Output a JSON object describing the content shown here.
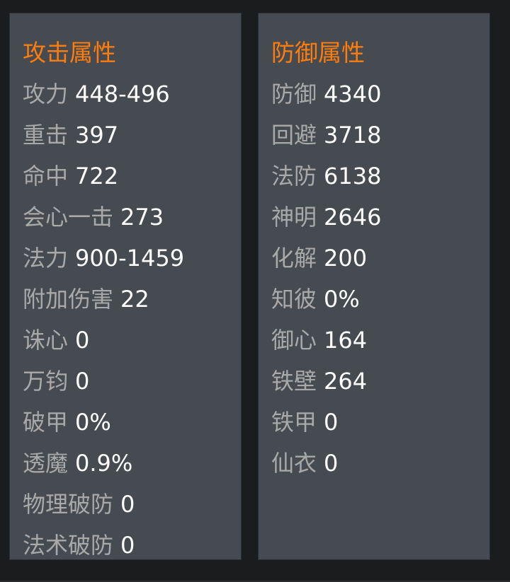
{
  "attack": {
    "title": "攻击属性",
    "items": [
      {
        "label": "攻力",
        "value": "448-496"
      },
      {
        "label": "重击",
        "value": "397"
      },
      {
        "label": "命中",
        "value": "722"
      },
      {
        "label": "会心一击",
        "value": "273"
      },
      {
        "label": "法力",
        "value": "900-1459"
      },
      {
        "label": "附加伤害",
        "value": "22"
      },
      {
        "label": "诛心",
        "value": "0"
      },
      {
        "label": "万钧",
        "value": "0"
      },
      {
        "label": "破甲",
        "value": "0%"
      },
      {
        "label": "透魔",
        "value": "0.9%"
      },
      {
        "label": "物理破防",
        "value": "0"
      },
      {
        "label": "法术破防",
        "value": "0"
      }
    ]
  },
  "defense": {
    "title": "防御属性",
    "items": [
      {
        "label": "防御",
        "value": "4340"
      },
      {
        "label": "回避",
        "value": "3718"
      },
      {
        "label": "法防",
        "value": "6138"
      },
      {
        "label": "神明",
        "value": "2646"
      },
      {
        "label": "化解",
        "value": "200"
      },
      {
        "label": "知彼",
        "value": "0%"
      },
      {
        "label": "御心",
        "value": "164"
      },
      {
        "label": "铁壁",
        "value": "264"
      },
      {
        "label": "铁甲",
        "value": "0"
      },
      {
        "label": "仙衣",
        "value": "0"
      }
    ]
  },
  "colors": {
    "title": "#ff7d0c",
    "label": "#a9a9a9",
    "value": "#ffffff",
    "panel": "#464a51",
    "background": "#1b1c1e"
  }
}
